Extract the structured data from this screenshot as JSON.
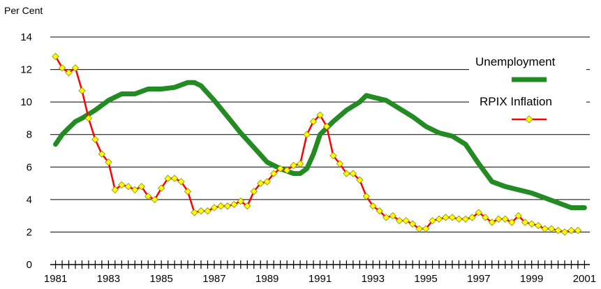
{
  "chart_data": {
    "type": "line",
    "title": "",
    "ylabel": "Per Cent",
    "xlabel": "",
    "ylim": [
      0,
      14
    ],
    "yticks": [
      "0",
      "2",
      "4",
      "6",
      "8",
      "10",
      "12",
      "14"
    ],
    "xlim": [
      1980.8,
      2001.2
    ],
    "xticks": [
      "1981",
      "1983",
      "1985",
      "1987",
      "1989",
      "1991",
      "1993",
      "1995",
      "1997",
      "1999",
      "2001"
    ],
    "grid": true,
    "legend": "top-right",
    "series": [
      {
        "name": "Unemployment",
        "color": "#228b22",
        "marker": "none",
        "x": [
          1981.0,
          1981.25,
          1981.5,
          1981.75,
          1982.0,
          1982.5,
          1983.0,
          1983.5,
          1984.0,
          1984.5,
          1985.0,
          1985.5,
          1986.0,
          1986.25,
          1986.5,
          1987.0,
          1987.5,
          1988.0,
          1988.5,
          1989.0,
          1989.5,
          1990.0,
          1990.25,
          1990.5,
          1990.75,
          1991.0,
          1991.5,
          1992.0,
          1992.5,
          1992.75,
          1993.0,
          1993.5,
          1994.0,
          1994.5,
          1995.0,
          1995.5,
          1996.0,
          1996.5,
          1997.0,
          1997.5,
          1998.0,
          1998.5,
          1999.0,
          1999.5,
          2000.0,
          2000.5,
          2001.0
        ],
        "values": [
          7.4,
          8.0,
          8.4,
          8.8,
          9.0,
          9.5,
          10.1,
          10.5,
          10.5,
          10.8,
          10.8,
          10.9,
          11.2,
          11.2,
          11.0,
          10.1,
          9.1,
          8.1,
          7.2,
          6.3,
          5.9,
          5.6,
          5.6,
          5.9,
          6.8,
          8.0,
          8.8,
          9.5,
          10.0,
          10.4,
          10.3,
          10.1,
          9.6,
          9.1,
          8.5,
          8.1,
          7.9,
          7.4,
          6.2,
          5.1,
          4.8,
          4.6,
          4.4,
          4.1,
          3.8,
          3.5,
          3.5
        ]
      },
      {
        "name": "RPIX Inflation",
        "color": "#ff0000",
        "marker": "diamond",
        "marker_color": "#ffff00",
        "x": [
          1981.0,
          1981.25,
          1981.5,
          1981.75,
          1982.0,
          1982.25,
          1982.5,
          1982.75,
          1983.0,
          1983.25,
          1983.5,
          1983.75,
          1984.0,
          1984.25,
          1984.5,
          1984.75,
          1985.0,
          1985.25,
          1985.5,
          1985.75,
          1986.0,
          1986.25,
          1986.5,
          1986.75,
          1987.0,
          1987.25,
          1987.5,
          1987.75,
          1988.0,
          1988.25,
          1988.5,
          1988.75,
          1989.0,
          1989.25,
          1989.5,
          1989.75,
          1990.0,
          1990.25,
          1990.5,
          1990.75,
          1991.0,
          1991.25,
          1991.5,
          1991.75,
          1992.0,
          1992.25,
          1992.5,
          1992.75,
          1993.0,
          1993.25,
          1993.5,
          1993.75,
          1994.0,
          1994.25,
          1994.5,
          1994.75,
          1995.0,
          1995.25,
          1995.5,
          1995.75,
          1996.0,
          1996.25,
          1996.5,
          1996.75,
          1997.0,
          1997.25,
          1997.5,
          1997.75,
          1998.0,
          1998.25,
          1998.5,
          1998.75,
          1999.0,
          1999.25,
          1999.5,
          1999.75,
          2000.0,
          2000.25,
          2000.5,
          2000.75
        ],
        "values": [
          12.8,
          12.1,
          11.8,
          12.1,
          10.7,
          9.0,
          7.7,
          6.8,
          6.3,
          4.6,
          4.9,
          4.8,
          4.6,
          4.8,
          4.2,
          4.0,
          4.7,
          5.3,
          5.3,
          5.1,
          4.5,
          3.2,
          3.3,
          3.3,
          3.5,
          3.6,
          3.6,
          3.7,
          3.9,
          3.6,
          4.5,
          5.0,
          5.1,
          5.6,
          5.9,
          5.8,
          6.1,
          6.2,
          8.0,
          8.8,
          9.2,
          8.5,
          6.7,
          6.2,
          5.6,
          5.6,
          5.2,
          4.2,
          3.6,
          3.3,
          2.9,
          3.0,
          2.7,
          2.7,
          2.5,
          2.2,
          2.2,
          2.7,
          2.8,
          2.9,
          2.9,
          2.8,
          2.8,
          2.9,
          3.2,
          2.9,
          2.6,
          2.8,
          2.8,
          2.6,
          3.0,
          2.6,
          2.5,
          2.4,
          2.2,
          2.2,
          2.1,
          2.0,
          2.1,
          2.1
        ]
      }
    ]
  }
}
